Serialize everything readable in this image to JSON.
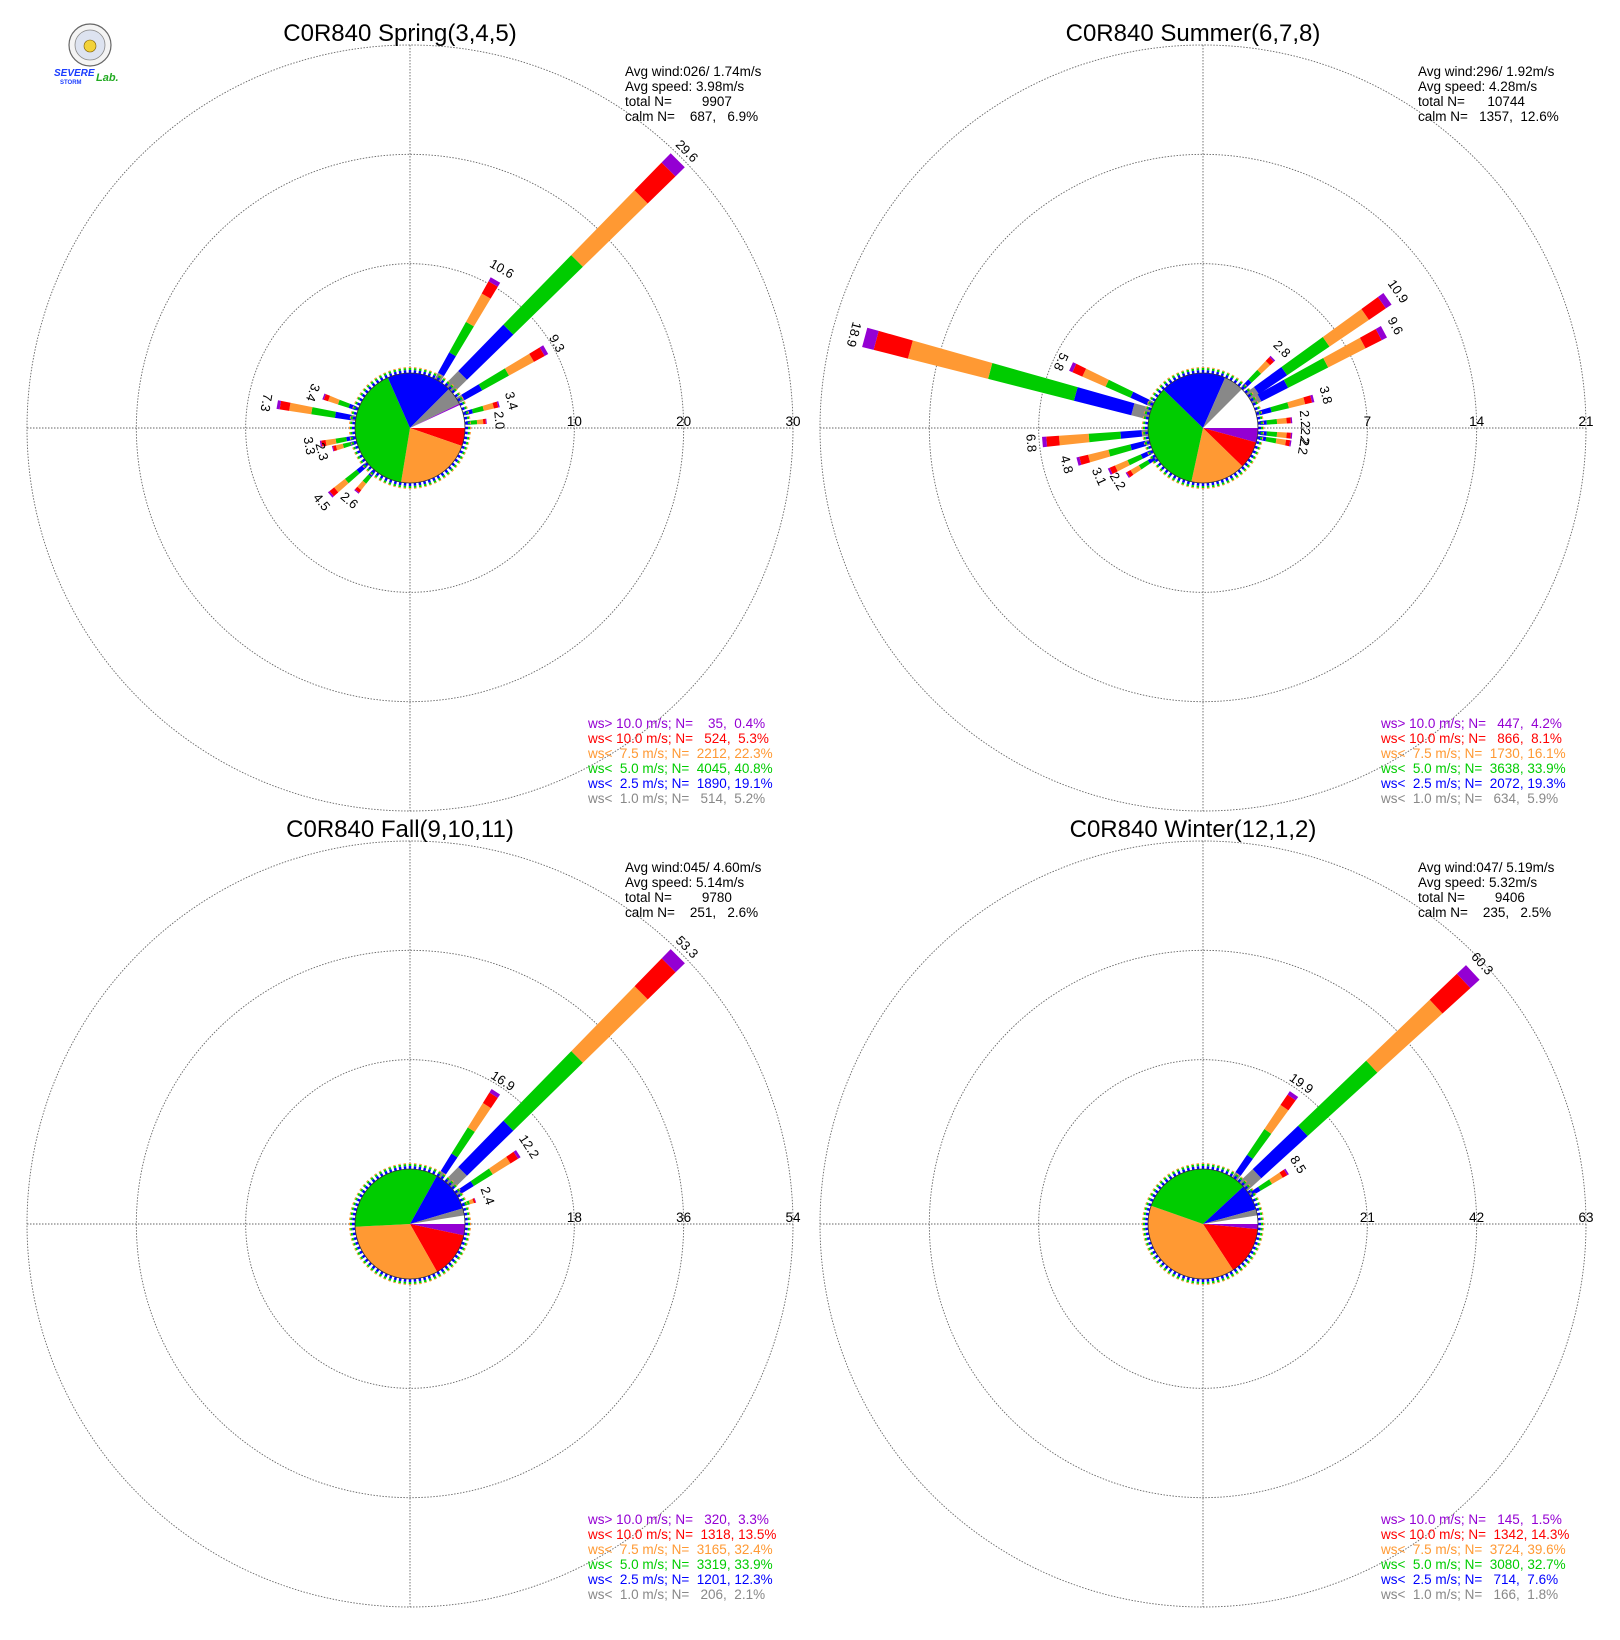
{
  "colors": {
    "ws_gt_10": "#9400D3",
    "ws_lt_10": "#FF0000",
    "ws_lt_7_5": "#FF9933",
    "ws_lt_5": "#00CC00",
    "ws_lt_2_5": "#0000FF",
    "ws_lt_1": "#888888"
  },
  "logo": {
    "text_top": "SEVERE",
    "text_bottom": "STORM",
    "text_lab": "Lab."
  },
  "chart_data": [
    {
      "type": "windrose",
      "title": "C0R840 Spring(3,4,5)",
      "info": [
        "Avg wind:026/ 1.74m/s",
        "Avg speed: 3.98m/s",
        "total N=        9907",
        "calm N=    687,   6.9%"
      ],
      "rings": [
        10,
        20,
        30
      ],
      "ring_labels": [
        "10",
        "20",
        "30"
      ],
      "rmax": 30,
      "bars": [
        {
          "dir": 30,
          "value": 10.6,
          "label": "10.6"
        },
        {
          "dir": 45,
          "value": 29.6,
          "label": "29.6"
        },
        {
          "dir": 60,
          "value": 9.3,
          "label": "9.3"
        },
        {
          "dir": 75,
          "value": 3.4,
          "label": "3.4"
        },
        {
          "dir": 85,
          "value": 2.0,
          "label": "2.0"
        },
        {
          "dir": 280,
          "value": 7.3,
          "label": "7.3"
        },
        {
          "dir": 290,
          "value": 3.4,
          "label": "3.4"
        },
        {
          "dir": 260,
          "value": 3.3,
          "label": "3.3"
        },
        {
          "dir": 255,
          "value": 2.3,
          "label": "2.3"
        },
        {
          "dir": 230,
          "value": 4.5,
          "label": "4.5"
        },
        {
          "dir": 220,
          "value": 2.6,
          "label": "2.6"
        }
      ],
      "pie": [
        {
          "cat": "ws_lt_10",
          "pct": 5.3
        },
        {
          "cat": "ws_lt_7_5",
          "pct": 22.3
        },
        {
          "cat": "ws_lt_5",
          "pct": 40.8
        },
        {
          "cat": "ws_lt_2_5",
          "pct": 19.1
        },
        {
          "cat": "ws_lt_1",
          "pct": 5.2
        },
        {
          "cat": "ws_gt_10",
          "pct": 0.4
        }
      ],
      "legend": [
        {
          "cat": "ws_gt_10",
          "text": "ws> 10.0 m/s; N=    35,  0.4%"
        },
        {
          "cat": "ws_lt_10",
          "text": "ws< 10.0 m/s; N=   524,  5.3%"
        },
        {
          "cat": "ws_lt_7_5",
          "text": "ws<  7.5 m/s; N=  2212, 22.3%"
        },
        {
          "cat": "ws_lt_5",
          "text": "ws<  5.0 m/s; N=  4045, 40.8%"
        },
        {
          "cat": "ws_lt_2_5",
          "text": "ws<  2.5 m/s; N=  1890, 19.1%"
        },
        {
          "cat": "ws_lt_1",
          "text": "ws<  1.0 m/s; N=   514,  5.2%"
        }
      ]
    },
    {
      "type": "windrose",
      "title": "C0R840 Summer(6,7,8)",
      "info": [
        "Avg wind:296/ 1.92m/s",
        "Avg speed: 4.28m/s",
        "total N=      10744",
        "calm N=   1357,  12.6%"
      ],
      "rings": [
        7,
        14,
        21
      ],
      "ring_labels": [
        "7",
        "14",
        "21"
      ],
      "rmax": 21,
      "bars": [
        {
          "dir": 45,
          "value": 2.8,
          "label": "2.8"
        },
        {
          "dir": 55,
          "value": 10.9,
          "label": "10.9"
        },
        {
          "dir": 62,
          "value": 9.6,
          "label": "9.6"
        },
        {
          "dir": 75,
          "value": 3.8,
          "label": "3.8"
        },
        {
          "dir": 85,
          "value": 2.2,
          "label": "2.2"
        },
        {
          "dir": 95,
          "value": 2.2,
          "label": "2.2"
        },
        {
          "dir": 100,
          "value": 2.2,
          "label": "2.2"
        },
        {
          "dir": 285,
          "value": 18.9,
          "label": "18.9"
        },
        {
          "dir": 295,
          "value": 5.8,
          "label": "5.8"
        },
        {
          "dir": 265,
          "value": 6.8,
          "label": "6.8"
        },
        {
          "dir": 255,
          "value": 4.8,
          "label": "4.8"
        },
        {
          "dir": 245,
          "value": 3.1,
          "label": "3.1"
        },
        {
          "dir": 238,
          "value": 2.2,
          "label": "2.2"
        }
      ],
      "pie": [
        {
          "cat": "ws_gt_10",
          "pct": 4.2
        },
        {
          "cat": "ws_lt_10",
          "pct": 8.1
        },
        {
          "cat": "ws_lt_7_5",
          "pct": 16.1
        },
        {
          "cat": "ws_lt_5",
          "pct": 33.9
        },
        {
          "cat": "ws_lt_2_5",
          "pct": 19.3
        },
        {
          "cat": "ws_lt_1",
          "pct": 5.9
        }
      ],
      "legend": [
        {
          "cat": "ws_gt_10",
          "text": "ws> 10.0 m/s; N=   447,  4.2%"
        },
        {
          "cat": "ws_lt_10",
          "text": "ws< 10.0 m/s; N=   866,  8.1%"
        },
        {
          "cat": "ws_lt_7_5",
          "text": "ws<  7.5 m/s; N=  1730, 16.1%"
        },
        {
          "cat": "ws_lt_5",
          "text": "ws<  5.0 m/s; N=  3638, 33.9%"
        },
        {
          "cat": "ws_lt_2_5",
          "text": "ws<  2.5 m/s; N=  2072, 19.3%"
        },
        {
          "cat": "ws_lt_1",
          "text": "ws<  1.0 m/s; N=   634,  5.9%"
        }
      ]
    },
    {
      "type": "windrose",
      "title": "C0R840 Fall(9,10,11)",
      "info": [
        "Avg wind:045/ 4.60m/s",
        "Avg speed: 5.14m/s",
        "total N=        9780",
        "calm N=    251,   2.6%"
      ],
      "rings": [
        18,
        36,
        54
      ],
      "ring_labels": [
        "18",
        "36",
        "54"
      ],
      "rmax": 54,
      "bars": [
        {
          "dir": 33,
          "value": 16.9,
          "label": "16.9"
        },
        {
          "dir": 45,
          "value": 53.3,
          "label": "53.3"
        },
        {
          "dir": 57,
          "value": 12.2,
          "label": "12.2"
        },
        {
          "dir": 70,
          "value": 2.4,
          "label": "2.4"
        }
      ],
      "pie": [
        {
          "cat": "ws_gt_10",
          "pct": 3.3
        },
        {
          "cat": "ws_lt_10",
          "pct": 13.5
        },
        {
          "cat": "ws_lt_7_5",
          "pct": 32.4
        },
        {
          "cat": "ws_lt_5",
          "pct": 33.9
        },
        {
          "cat": "ws_lt_2_5",
          "pct": 12.3
        },
        {
          "cat": "ws_lt_1",
          "pct": 2.1
        }
      ],
      "legend": [
        {
          "cat": "ws_gt_10",
          "text": "ws> 10.0 m/s; N=   320,  3.3%"
        },
        {
          "cat": "ws_lt_10",
          "text": "ws< 10.0 m/s; N=  1318, 13.5%"
        },
        {
          "cat": "ws_lt_7_5",
          "text": "ws<  7.5 m/s; N=  3165, 32.4%"
        },
        {
          "cat": "ws_lt_5",
          "text": "ws<  5.0 m/s; N=  3319, 33.9%"
        },
        {
          "cat": "ws_lt_2_5",
          "text": "ws<  2.5 m/s; N=  1201, 12.3%"
        },
        {
          "cat": "ws_lt_1",
          "text": "ws<  1.0 m/s; N=   206,  2.1%"
        }
      ]
    },
    {
      "type": "windrose",
      "title": "C0R840 Winter(12,1,2)",
      "info": [
        "Avg wind:047/ 5.19m/s",
        "Avg speed: 5.32m/s",
        "total N=        9406",
        "calm N=    235,   2.5%"
      ],
      "rings": [
        21,
        42,
        63
      ],
      "ring_labels": [
        "21",
        "42",
        "63"
      ],
      "rmax": 63,
      "bars": [
        {
          "dir": 35,
          "value": 19.9,
          "label": "19.9"
        },
        {
          "dir": 47,
          "value": 60.3,
          "label": "60.3"
        },
        {
          "dir": 58,
          "value": 8.5,
          "label": "8.5"
        }
      ],
      "pie": [
        {
          "cat": "ws_gt_10",
          "pct": 1.5
        },
        {
          "cat": "ws_lt_10",
          "pct": 14.3
        },
        {
          "cat": "ws_lt_7_5",
          "pct": 39.6
        },
        {
          "cat": "ws_lt_5",
          "pct": 32.7
        },
        {
          "cat": "ws_lt_2_5",
          "pct": 7.6
        },
        {
          "cat": "ws_lt_1",
          "pct": 1.8
        }
      ],
      "legend": [
        {
          "cat": "ws_gt_10",
          "text": "ws> 10.0 m/s; N=   145,  1.5%"
        },
        {
          "cat": "ws_lt_10",
          "text": "ws< 10.0 m/s; N=  1342, 14.3%"
        },
        {
          "cat": "ws_lt_7_5",
          "text": "ws<  7.5 m/s; N=  3724, 39.6%"
        },
        {
          "cat": "ws_lt_5",
          "text": "ws<  5.0 m/s; N=  3080, 32.7%"
        },
        {
          "cat": "ws_lt_2_5",
          "text": "ws<  2.5 m/s; N=   714,  7.6%"
        },
        {
          "cat": "ws_lt_1",
          "text": "ws<  1.0 m/s; N=   166,  1.8%"
        }
      ]
    }
  ]
}
